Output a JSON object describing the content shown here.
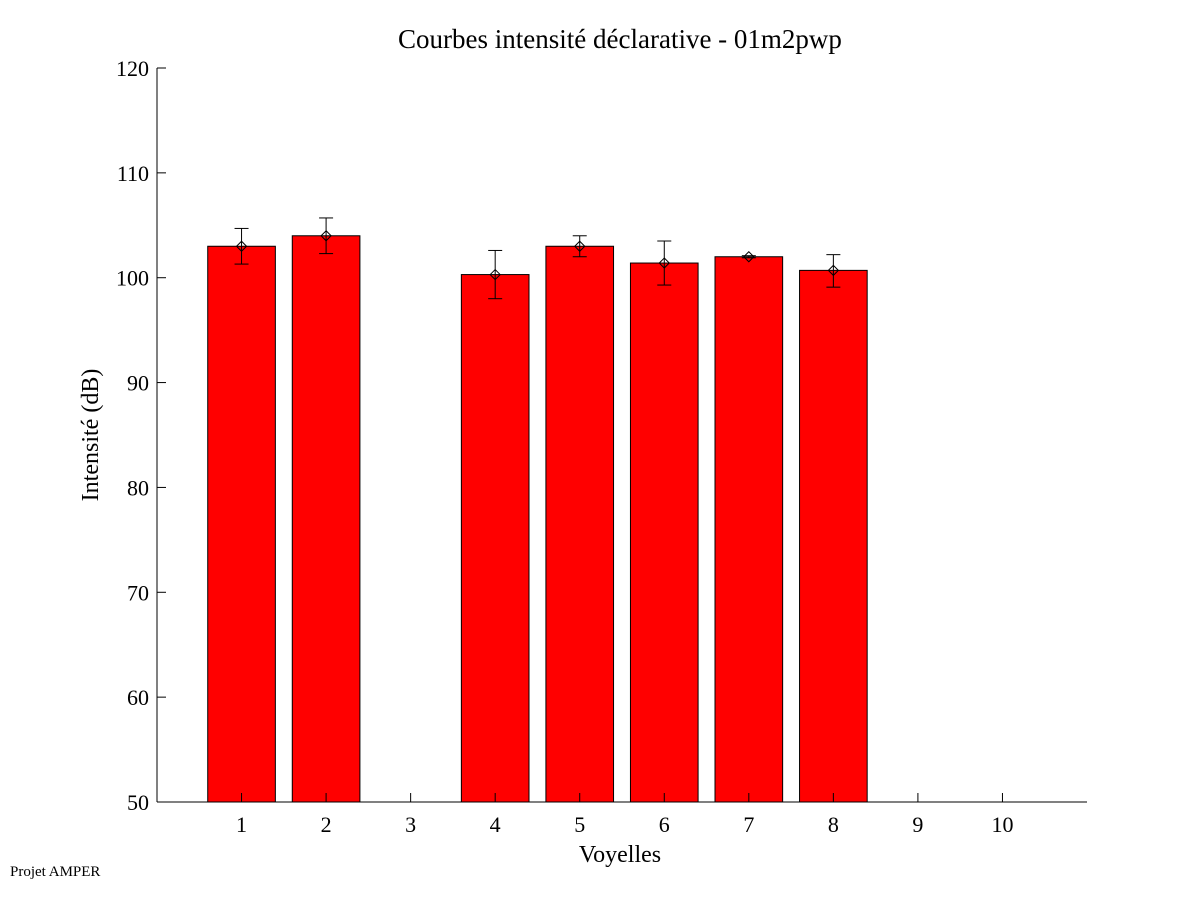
{
  "footer_text": "Projet AMPER",
  "chart_data": {
    "type": "bar",
    "title": "Courbes intensité déclarative - 01m2pwp",
    "xlabel": "Voyelles",
    "ylabel": "Intensité (dB)",
    "ylim": [
      50,
      120
    ],
    "xlim": [
      0,
      11
    ],
    "yticks": [
      50,
      60,
      70,
      80,
      90,
      100,
      110,
      120
    ],
    "categories": [
      "1",
      "2",
      "3",
      "4",
      "5",
      "6",
      "7",
      "8",
      "9",
      "10"
    ],
    "values": [
      103.0,
      104.0,
      null,
      100.3,
      103.0,
      101.4,
      102.0,
      100.7,
      null,
      null
    ],
    "error_low": [
      101.3,
      102.3,
      null,
      98.0,
      102.0,
      99.3,
      101.9,
      99.1,
      null,
      null
    ],
    "error_high": [
      104.7,
      105.7,
      null,
      102.6,
      104.0,
      103.5,
      102.1,
      102.2,
      null,
      null
    ],
    "bar_color": "#ff0000",
    "grid": false
  }
}
